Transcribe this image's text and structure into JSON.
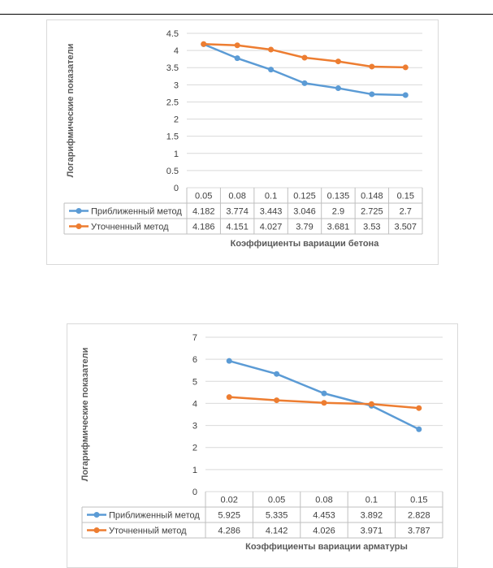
{
  "chart_data": [
    {
      "type": "line",
      "title": "",
      "ylabel": "Логарифмические показатели",
      "xlabel": "Коэффициенты вариации бетона",
      "ylim": [
        0,
        4.5
      ],
      "ytick_step": 0.5,
      "ytick_labels": [
        "0",
        "0.5",
        "1",
        "1.5",
        "2",
        "2.5",
        "3",
        "3.5",
        "4",
        "4.5"
      ],
      "categories": [
        "0.05",
        "0.08",
        "0.1",
        "0.125",
        "0.135",
        "0.148",
        "0.15"
      ],
      "series": [
        {
          "name": "Приближенный метод",
          "color": "#5b9bd5",
          "values": [
            4.182,
            3.774,
            3.443,
            3.046,
            2.9,
            2.725,
            2.7
          ],
          "labels": [
            "4.182",
            "3.774",
            "3.443",
            "3.046",
            "2.9",
            "2.725",
            "2.7"
          ]
        },
        {
          "name": "Уточненный метод",
          "color": "#ed7d31",
          "values": [
            4.186,
            4.151,
            4.027,
            3.79,
            3.681,
            3.53,
            3.507
          ],
          "labels": [
            "4.186",
            "4.151",
            "4.027",
            "3.79",
            "3.681",
            "3.53",
            "3.507"
          ]
        }
      ],
      "grid": true,
      "legend": "data-table"
    },
    {
      "type": "line",
      "title": "",
      "ylabel": "Логарифмические показатели",
      "xlabel": "Коэффициенты вариации арматуры",
      "ylim": [
        0,
        7
      ],
      "ytick_step": 1,
      "ytick_labels": [
        "0",
        "1",
        "2",
        "3",
        "4",
        "5",
        "6",
        "7"
      ],
      "categories": [
        "0.02",
        "0.05",
        "0.08",
        "0.1",
        "0.15"
      ],
      "series": [
        {
          "name": "Приближенный метод",
          "color": "#5b9bd5",
          "values": [
            5.925,
            5.335,
            4.453,
            3.892,
            2.828
          ],
          "labels": [
            "5.925",
            "5.335",
            "4.453",
            "3.892",
            "2.828"
          ]
        },
        {
          "name": "Уточненный метод",
          "color": "#ed7d31",
          "values": [
            4.286,
            4.142,
            4.026,
            3.971,
            3.787
          ],
          "labels": [
            "4.286",
            "4.142",
            "4.026",
            "3.971",
            "3.787"
          ]
        }
      ],
      "grid": true,
      "legend": "data-table"
    }
  ]
}
